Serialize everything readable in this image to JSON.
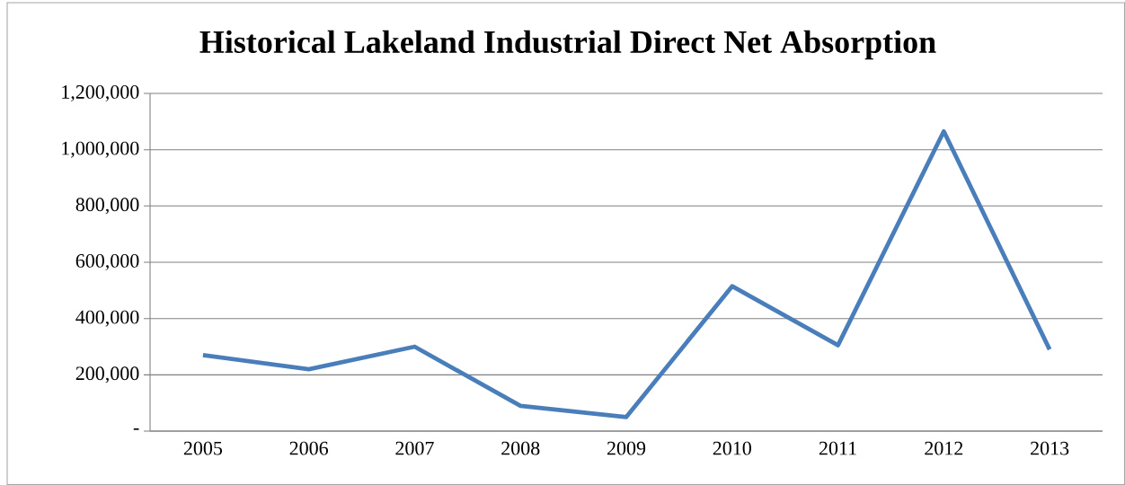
{
  "chart_data": {
    "type": "line",
    "title": "Historical Lakeland Industrial Direct Net Absorption",
    "categories": [
      "2005",
      "2006",
      "2007",
      "2008",
      "2009",
      "2010",
      "2011",
      "2012",
      "2013"
    ],
    "series": [
      {
        "color": "#4a7ebb",
        "values": [
          270000,
          220000,
          300000,
          90000,
          50000,
          515000,
          305000,
          1065000,
          290000
        ]
      }
    ],
    "ylim": [
      0,
      1200000
    ],
    "yticks": [
      {
        "value": 0,
        "label": "-"
      },
      {
        "value": 200000,
        "label": "200,000"
      },
      {
        "value": 400000,
        "label": "400,000"
      },
      {
        "value": 600000,
        "label": "600,000"
      },
      {
        "value": 800000,
        "label": "800,000"
      },
      {
        "value": 1000000,
        "label": "1,000,000"
      },
      {
        "value": 1200000,
        "label": "1,200,000"
      }
    ],
    "grid": "y",
    "marker": "none",
    "line_style": "solid"
  }
}
